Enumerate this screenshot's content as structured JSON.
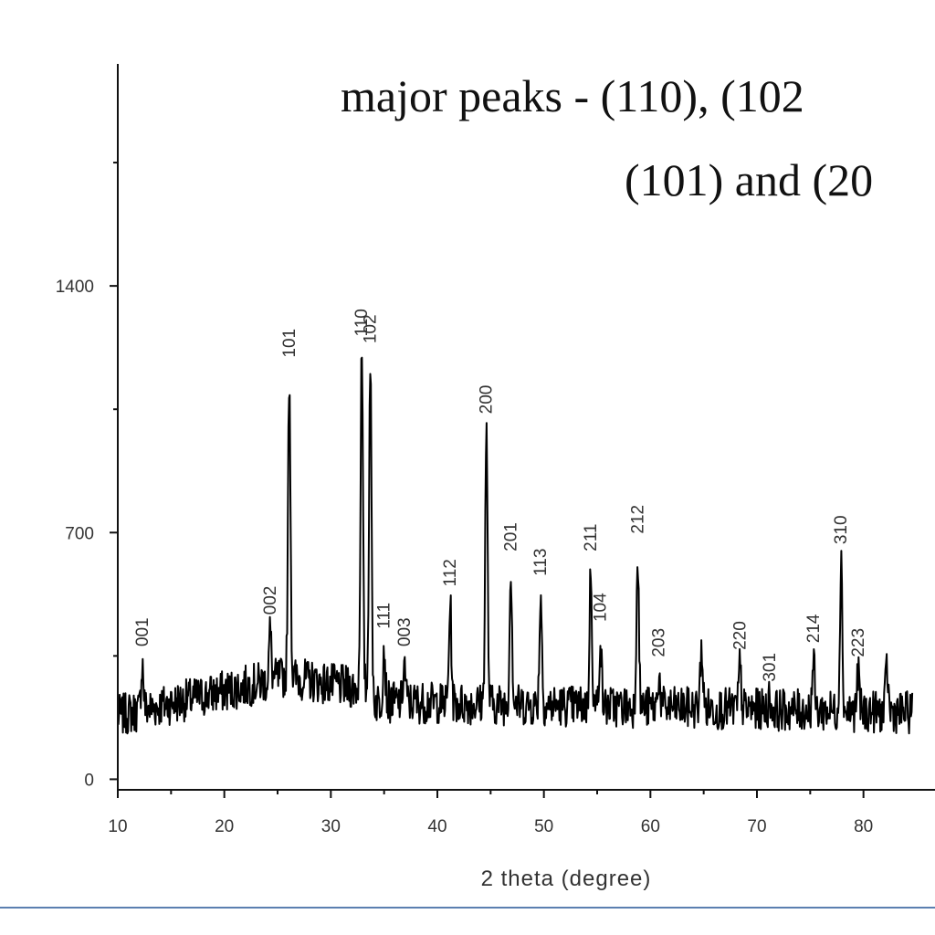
{
  "chart_data": {
    "type": "line",
    "xlabel": "2 theta (degree)",
    "ylabel": "",
    "xlim": [
      10,
      85
    ],
    "ylim": [
      -30,
      2030
    ],
    "x_ticks": [
      10,
      20,
      30,
      40,
      50,
      60,
      70,
      80
    ],
    "y_ticks": [
      0,
      700,
      1400
    ],
    "grid": false,
    "annotation_lines": [
      "major peaks -  (110), (102",
      "(101) and (20"
    ],
    "background_level": 180,
    "peaks": [
      {
        "label": "001",
        "x": 12.3,
        "y": 330
      },
      {
        "label": "002",
        "x": 24.3,
        "y": 420
      },
      {
        "label": "101",
        "x": 26.1,
        "y": 1150
      },
      {
        "label": "110",
        "x": 32.9,
        "y": 1210
      },
      {
        "label": "102",
        "x": 33.7,
        "y": 1190
      },
      {
        "label": "111",
        "x": 35.0,
        "y": 380
      },
      {
        "label": "003",
        "x": 36.9,
        "y": 330
      },
      {
        "label": "112",
        "x": 41.2,
        "y": 500
      },
      {
        "label": "200",
        "x": 44.6,
        "y": 990
      },
      {
        "label": "201",
        "x": 46.9,
        "y": 600
      },
      {
        "label": "113",
        "x": 49.7,
        "y": 530
      },
      {
        "label": "211",
        "x": 54.4,
        "y": 600
      },
      {
        "label": "104",
        "x": 55.3,
        "y": 400
      },
      {
        "label": "212",
        "x": 58.8,
        "y": 650
      },
      {
        "label": "203",
        "x": 60.8,
        "y": 300
      },
      {
        "label": "220",
        "x": 68.4,
        "y": 320
      },
      {
        "label": "301",
        "x": 71.2,
        "y": 230
      },
      {
        "label": "214",
        "x": 75.3,
        "y": 340
      },
      {
        "label": "310",
        "x": 77.9,
        "y": 620
      },
      {
        "label": "223",
        "x": 79.5,
        "y": 300
      }
    ],
    "unlabeled_peaks": [
      {
        "x": 64.8,
        "y": 380
      },
      {
        "x": 82.2,
        "y": 320
      }
    ]
  }
}
